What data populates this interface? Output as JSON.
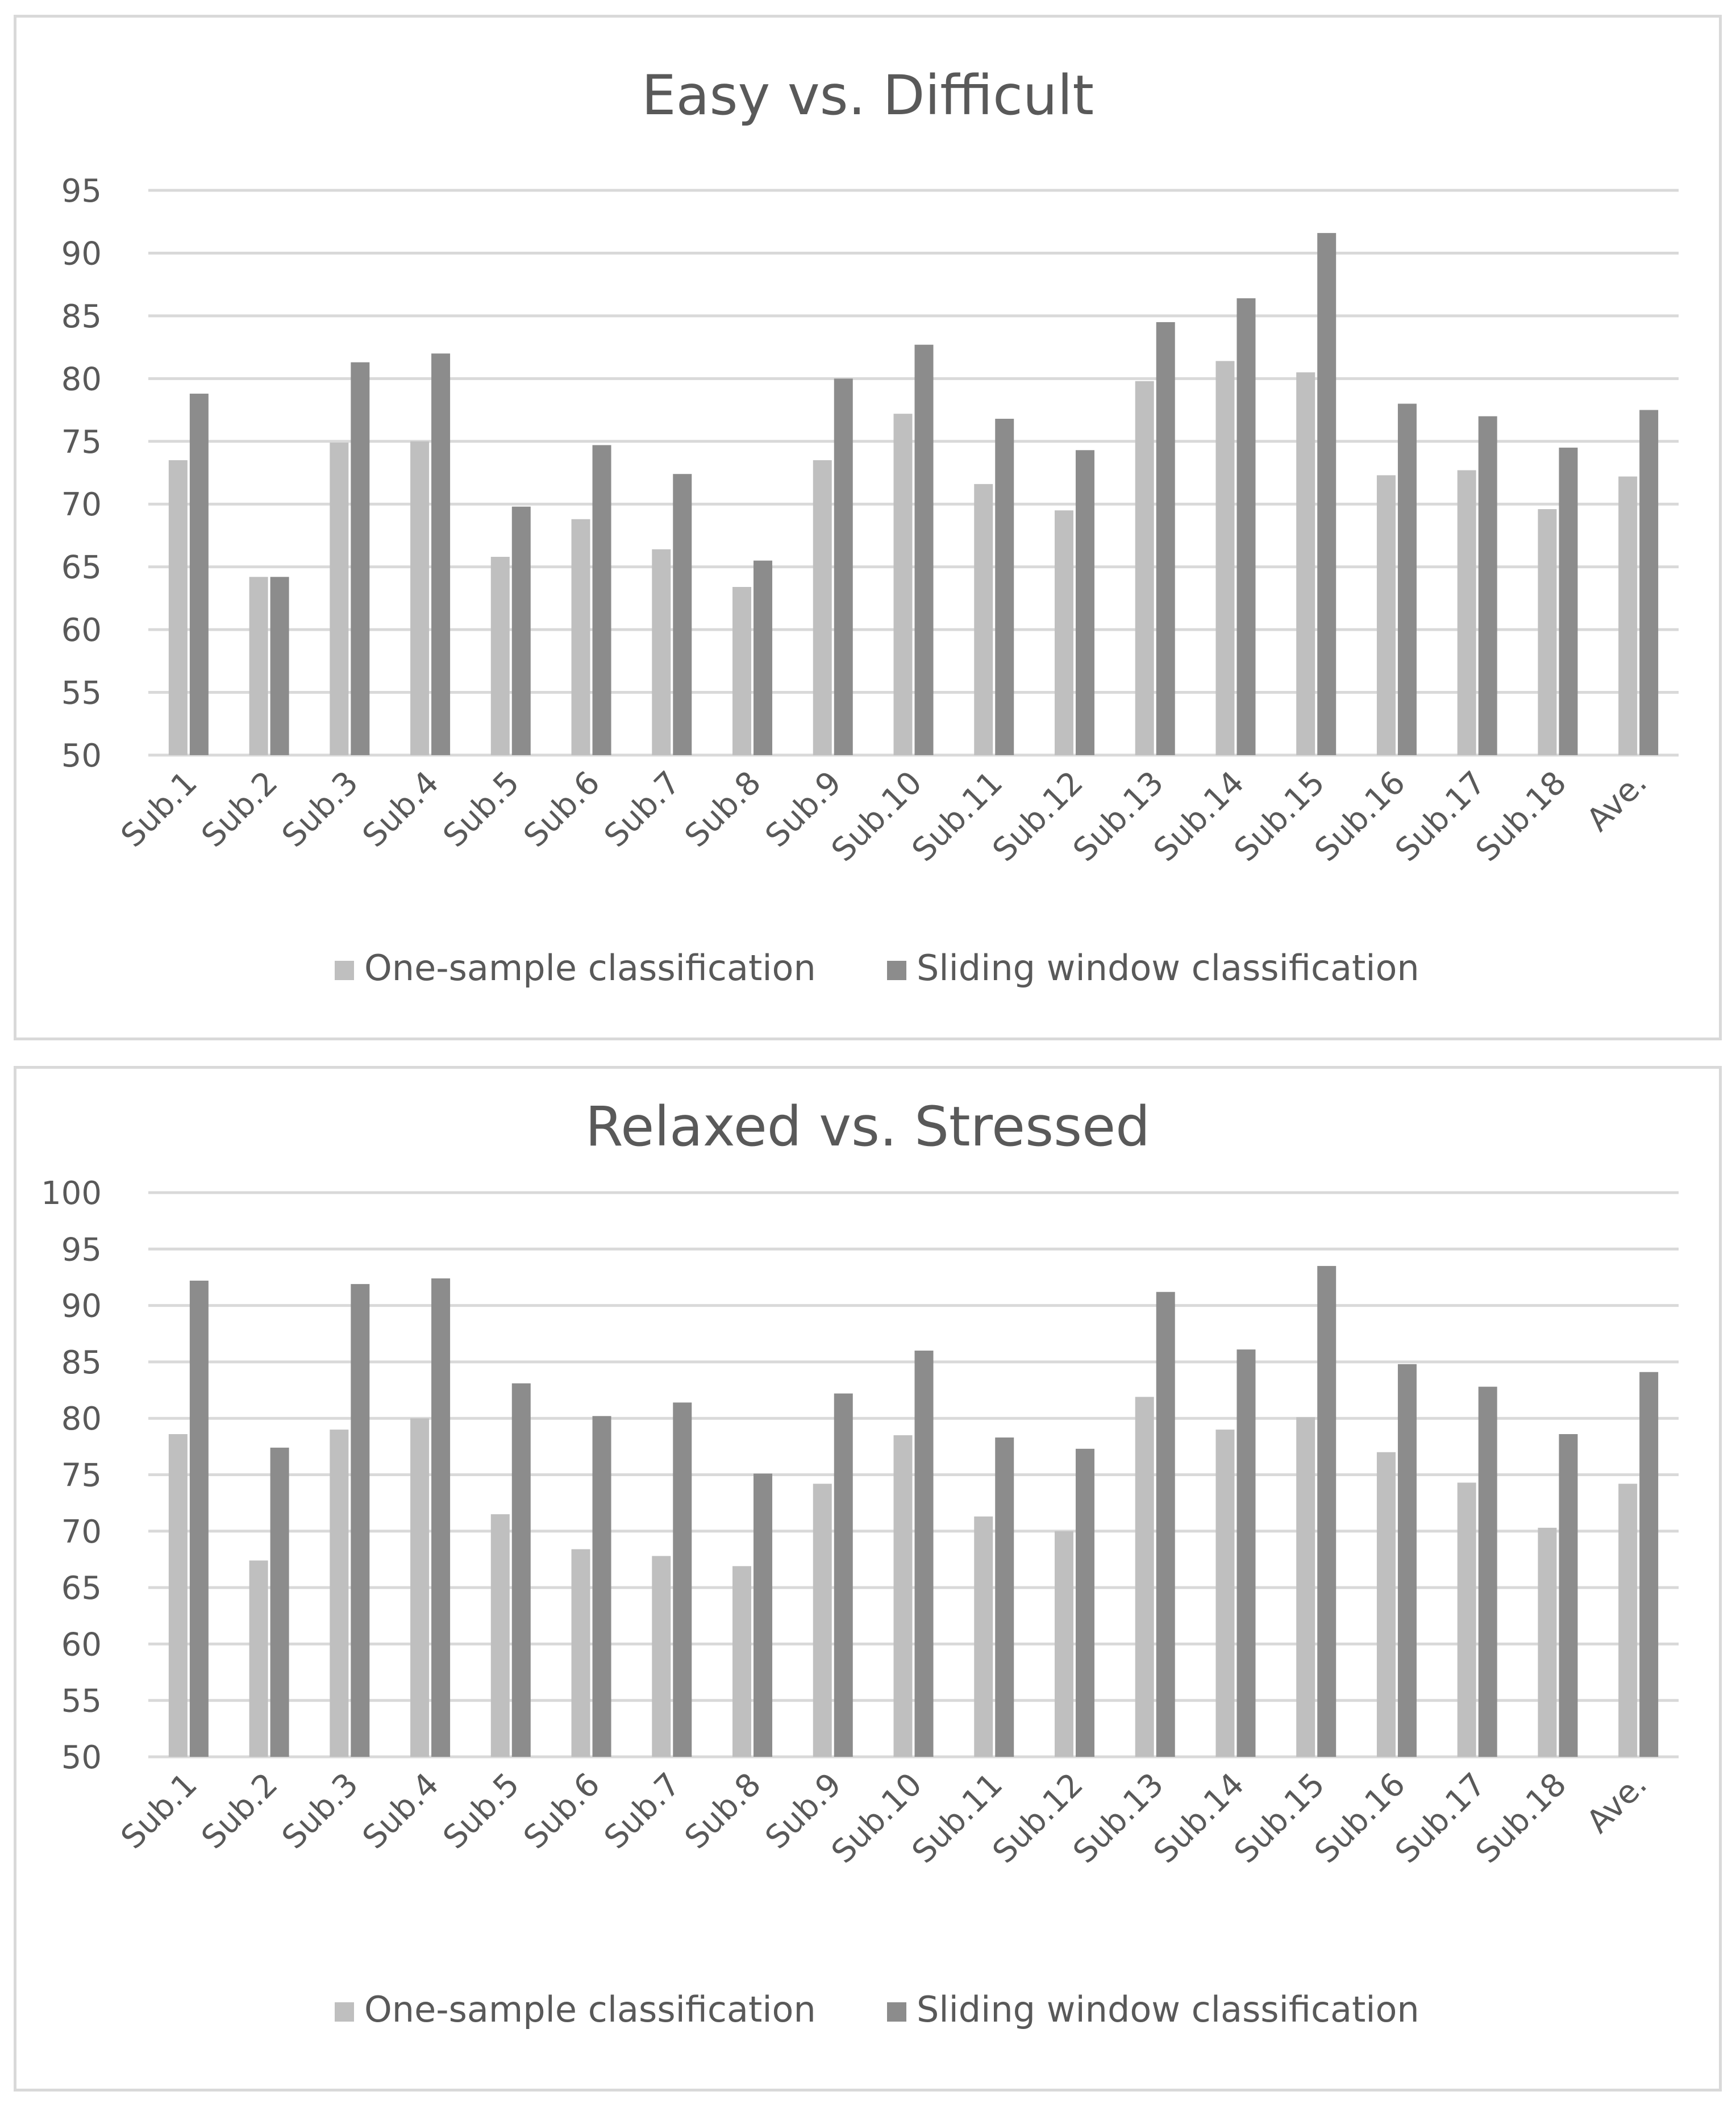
{
  "chart_data": [
    {
      "type": "bar",
      "title": "Easy vs. Difficult",
      "categories": [
        "Sub.1",
        "Sub.2",
        "Sub.3",
        "Sub.4",
        "Sub.5",
        "Sub.6",
        "Sub.7",
        "Sub.8",
        "Sub.9",
        "Sub.10",
        "Sub.11",
        "Sub.12",
        "Sub.13",
        "Sub.14",
        "Sub.15",
        "Sub.16",
        "Sub.17",
        "Sub.18",
        "Ave."
      ],
      "series": [
        {
          "name": "One-sample classification",
          "color": "#bfbfbf",
          "values": [
            73.5,
            64.2,
            74.9,
            75.0,
            65.8,
            68.8,
            66.4,
            63.4,
            73.5,
            77.2,
            71.6,
            69.5,
            79.8,
            81.4,
            80.5,
            72.3,
            72.7,
            69.6,
            72.2
          ]
        },
        {
          "name": "Sliding window classification",
          "color": "#8c8c8c",
          "values": [
            78.8,
            64.2,
            81.3,
            82.0,
            69.8,
            74.7,
            72.4,
            65.5,
            80.0,
            82.7,
            76.8,
            74.3,
            84.5,
            86.4,
            91.6,
            78.0,
            77.0,
            74.5,
            77.5
          ]
        }
      ],
      "yticks": [
        50,
        55,
        60,
        65,
        70,
        75,
        80,
        85,
        90,
        95
      ],
      "ylim": [
        50,
        95
      ],
      "xlabel": "",
      "ylabel": "",
      "legend_position": "bottom"
    },
    {
      "type": "bar",
      "title": "Relaxed vs. Stressed",
      "categories": [
        "Sub.1",
        "Sub.2",
        "Sub.3",
        "Sub.4",
        "Sub.5",
        "Sub.6",
        "Sub.7",
        "Sub.8",
        "Sub.9",
        "Sub.10",
        "Sub.11",
        "Sub.12",
        "Sub.13",
        "Sub.14",
        "Sub.15",
        "Sub.16",
        "Sub.17",
        "Sub.18",
        "Ave."
      ],
      "series": [
        {
          "name": "One-sample classification",
          "color": "#bfbfbf",
          "values": [
            78.6,
            67.4,
            79.0,
            80.0,
            71.5,
            68.4,
            67.8,
            66.9,
            74.2,
            78.5,
            71.3,
            70.0,
            81.9,
            79.0,
            80.1,
            77.0,
            74.3,
            70.3,
            74.2
          ]
        },
        {
          "name": "Sliding window classification",
          "color": "#8c8c8c",
          "values": [
            92.2,
            77.4,
            91.9,
            92.4,
            83.1,
            80.2,
            81.4,
            75.1,
            82.2,
            86.0,
            78.3,
            77.3,
            91.2,
            86.1,
            93.5,
            84.8,
            82.8,
            78.6,
            84.1
          ]
        }
      ],
      "yticks": [
        50,
        55,
        60,
        65,
        70,
        75,
        80,
        85,
        90,
        95,
        100
      ],
      "ylim": [
        50,
        100
      ],
      "xlabel": "",
      "ylabel": "",
      "legend_position": "bottom"
    }
  ]
}
